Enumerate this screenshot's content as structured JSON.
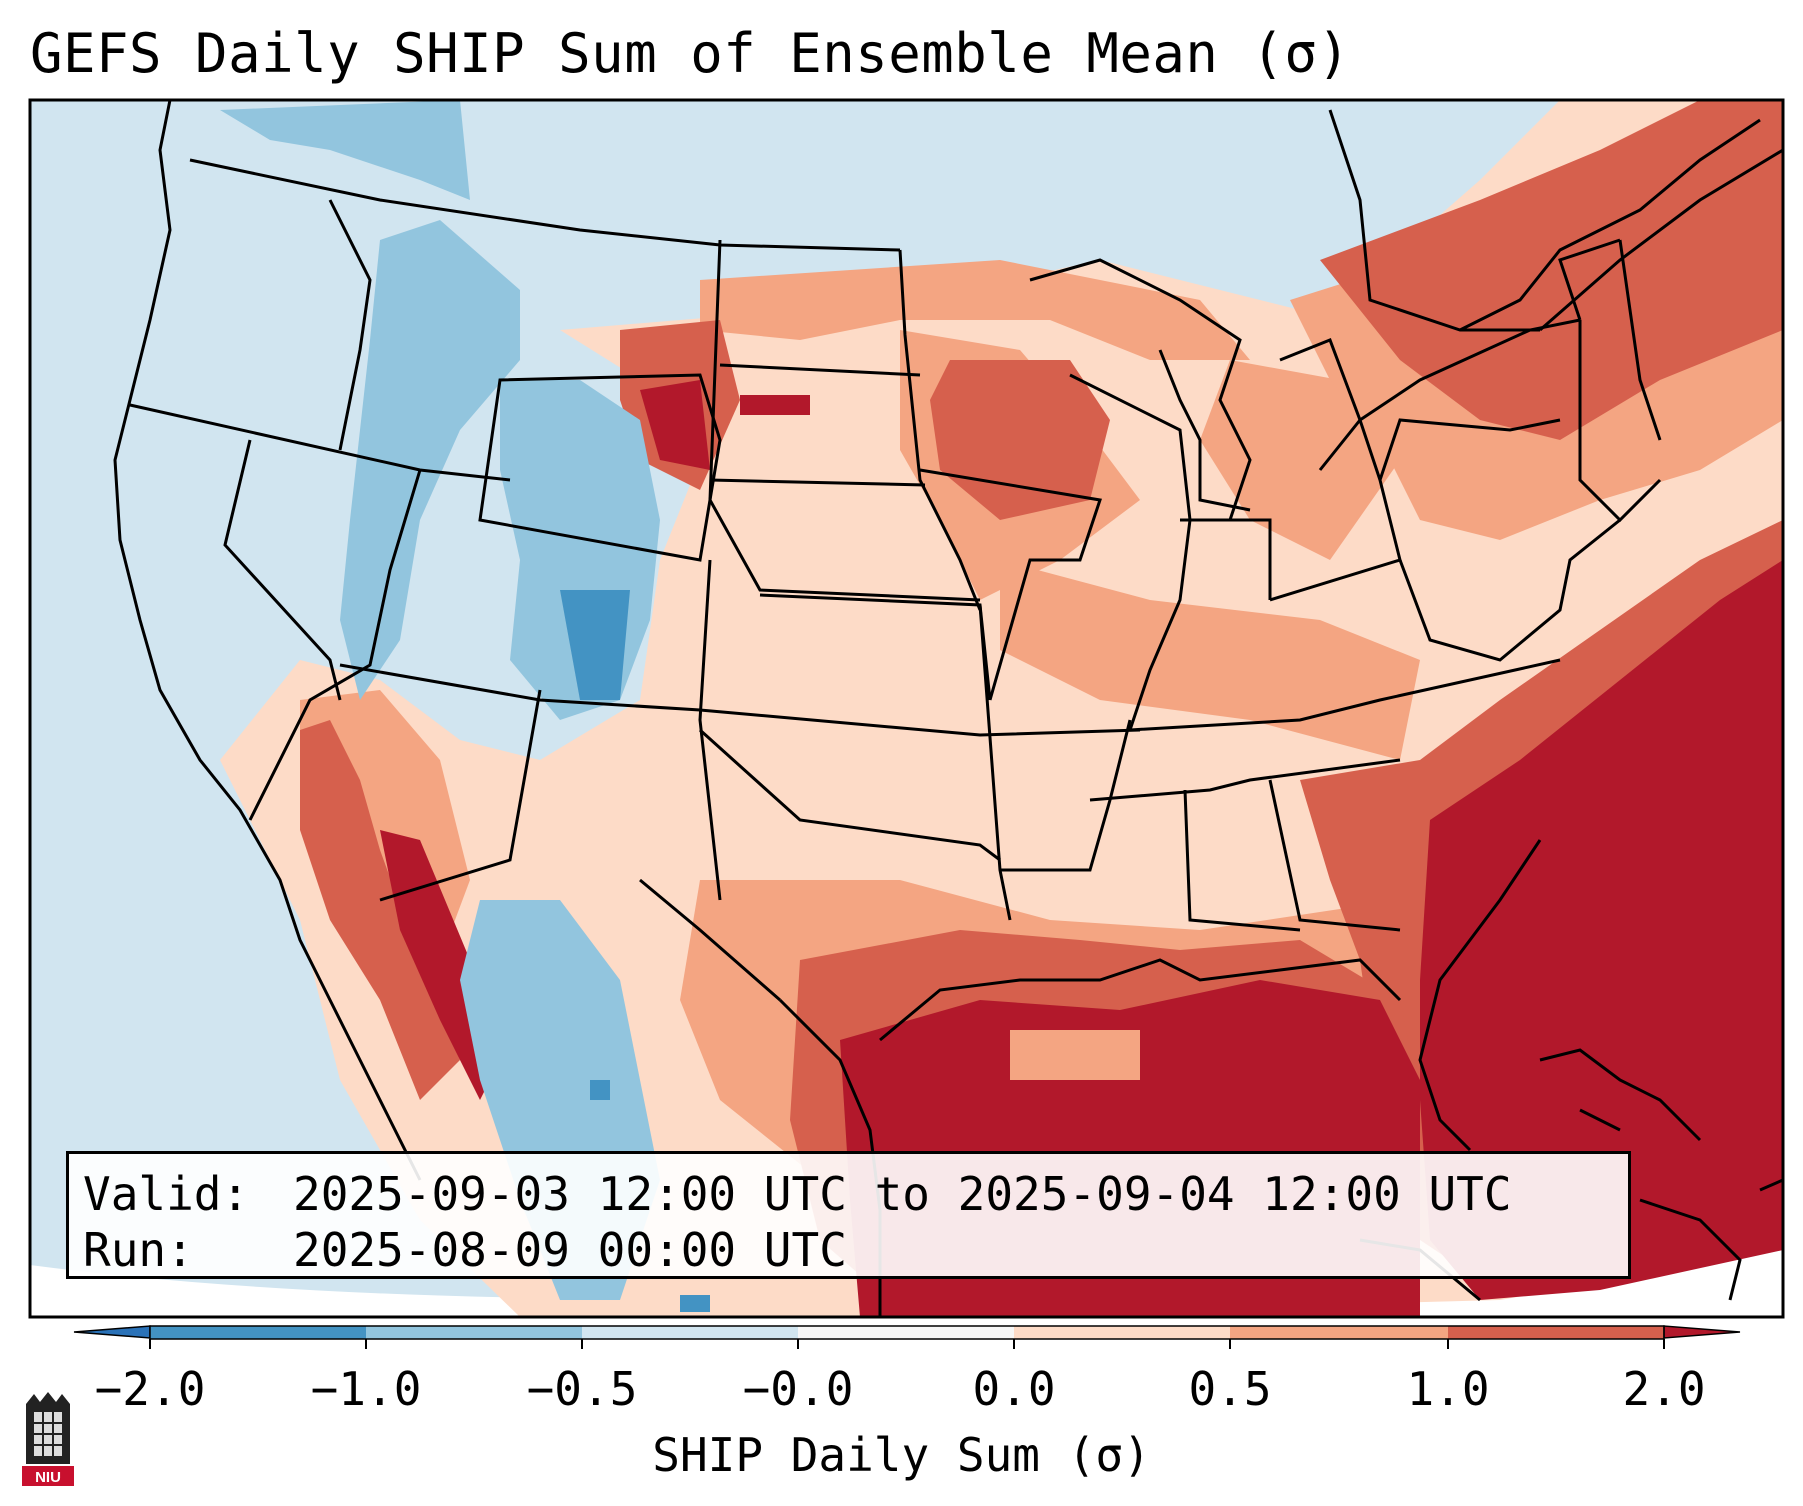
{
  "title": "GEFS Daily SHIP Sum of Ensemble Mean (σ)",
  "info": {
    "valid_label": "Valid:",
    "valid_value": "2025-09-03 12:00 UTC to 2025-09-04 12:00 UTC",
    "run_label": "Run:",
    "run_value": "2025-08-09 00:00 UTC"
  },
  "colorbar": {
    "label": "SHIP Daily Sum (σ)",
    "ticks": [
      "−2.0",
      "−1.0",
      "−0.5",
      "−0.0",
      "0.0",
      "0.5",
      "1.0",
      "2.0"
    ],
    "bins": [
      {
        "range": "below -2.0",
        "color": "#2a72b8"
      },
      {
        "range": "-2.0 to -1.0",
        "color": "#4393c3"
      },
      {
        "range": "-1.0 to -0.5",
        "color": "#92c5de"
      },
      {
        "range": "-0.5 to -0.0",
        "color": "#d1e5f0"
      },
      {
        "range": "-0.0 to 0.0",
        "color": "#f7f7f7"
      },
      {
        "range": "0.0 to 0.5",
        "color": "#fddbc7"
      },
      {
        "range": "0.5 to 1.0",
        "color": "#f4a582"
      },
      {
        "range": "1.0 to 2.0",
        "color": "#d6604d"
      },
      {
        "range": "above 2.0",
        "color": "#b2182b"
      }
    ]
  },
  "logo": {
    "text": "NIU"
  }
}
